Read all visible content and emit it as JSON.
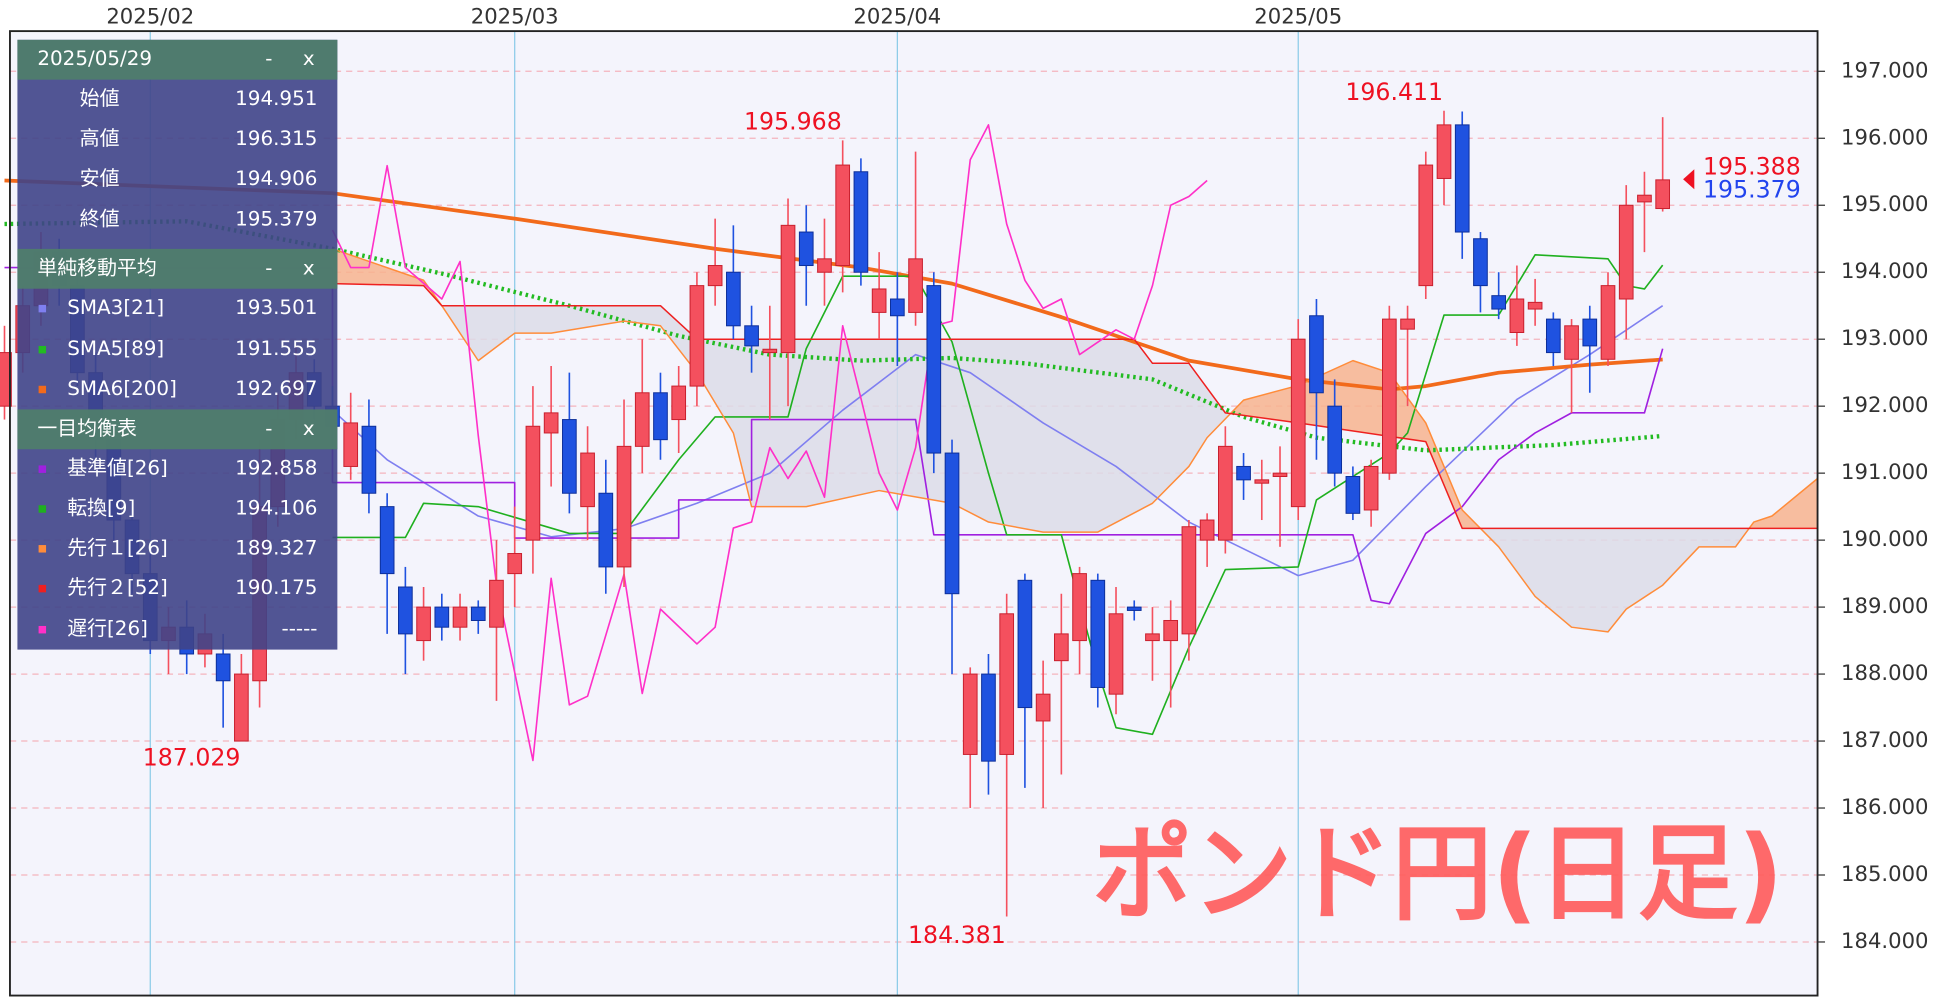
{
  "chart_data": {
    "type": "candlestick",
    "title": "ポンド円(日足)",
    "xlim": [
      0.3,
      99.5
    ],
    "xticks": [
      {
        "value": 8,
        "label": "2025/02"
      },
      {
        "value": 28,
        "label": "2025/03"
      },
      {
        "value": 49,
        "label": "2025/04"
      },
      {
        "value": 71,
        "label": "2025/05"
      }
    ],
    "ylim": [
      183.2,
      197.6
    ],
    "yticks": [
      {
        "value": 184,
        "label": "184.000"
      },
      {
        "value": 185,
        "label": "185.000"
      },
      {
        "value": 186,
        "label": "186.000"
      },
      {
        "value": 187,
        "label": "187.000"
      },
      {
        "value": 188,
        "label": "188.000"
      },
      {
        "value": 189,
        "label": "189.000"
      },
      {
        "value": 190,
        "label": "190.000"
      },
      {
        "value": 191,
        "label": "191.000"
      },
      {
        "value": 192,
        "label": "192.000"
      },
      {
        "value": 193,
        "label": "193.000"
      },
      {
        "value": 194,
        "label": "194.000"
      },
      {
        "value": 195,
        "label": "195.000"
      },
      {
        "value": 196,
        "label": "196.000"
      },
      {
        "value": 197,
        "label": "197.000"
      }
    ],
    "grid": true,
    "candles": {
      "up_color": "#f4505e",
      "down_color": "#1f52e0",
      "open": [
        192.0,
        192.8,
        193.5,
        194.3,
        193.8,
        192.5,
        191.5,
        190.3,
        189.5,
        188.5,
        188.7,
        188.3,
        188.3,
        187.0,
        187.9,
        190.5,
        191.8,
        192.5,
        192.0,
        191.1,
        191.7,
        190.5,
        189.3,
        188.5,
        189.0,
        188.7,
        189.0,
        188.7,
        189.5,
        190.0,
        191.6,
        191.8,
        190.5,
        190.7,
        189.6,
        191.4,
        192.2,
        191.8,
        192.3,
        193.8,
        194.0,
        193.2,
        192.8,
        192.8,
        194.6,
        194.0,
        194.1,
        195.5,
        193.4,
        193.6,
        193.4,
        193.8,
        191.3,
        186.8,
        188.0,
        186.8,
        189.4,
        187.3,
        188.2,
        188.5,
        189.4,
        187.7,
        189.0,
        188.5,
        188.5,
        188.6,
        190.0,
        190.0,
        191.1,
        190.85,
        190.95,
        190.5,
        193.35,
        192.0,
        190.95,
        190.45,
        191.0,
        193.15,
        193.8,
        195.4,
        196.2,
        194.5,
        193.65,
        193.1,
        193.45,
        193.3,
        192.7,
        193.3,
        192.7,
        193.6,
        195.05,
        194.951
      ],
      "high": [
        193.2,
        193.8,
        194.6,
        194.5,
        194.0,
        192.8,
        191.7,
        190.6,
        189.8,
        189.0,
        189.1,
        188.9,
        188.6,
        188.3,
        191.5,
        192.2,
        192.9,
        192.7,
        192.3,
        192.2,
        192.1,
        190.7,
        189.6,
        189.3,
        189.2,
        189.2,
        189.1,
        190.0,
        190.5,
        192.3,
        192.6,
        192.5,
        191.7,
        191.2,
        192.1,
        193.0,
        192.5,
        192.6,
        194.0,
        194.8,
        194.7,
        193.5,
        193.5,
        195.1,
        195.0,
        194.8,
        195.968,
        195.7,
        194.3,
        194.0,
        195.8,
        194.0,
        191.5,
        188.1,
        188.3,
        189.2,
        189.5,
        188.2,
        189.2,
        189.6,
        189.5,
        189.3,
        189.1,
        189.0,
        189.1,
        190.3,
        190.4,
        191.7,
        191.3,
        191.2,
        191.4,
        193.3,
        193.6,
        192.4,
        191.1,
        191.2,
        193.5,
        193.5,
        195.8,
        196.411,
        196.4,
        194.6,
        194.0,
        194.1,
        193.9,
        193.4,
        193.3,
        193.5,
        194.0,
        195.3,
        195.5,
        196.315
      ],
      "low": [
        191.8,
        192.5,
        193.2,
        193.5,
        192.3,
        191.2,
        190.0,
        189.2,
        188.3,
        188.0,
        188.0,
        188.1,
        187.2,
        187.029,
        187.5,
        190.2,
        191.5,
        191.8,
        191.4,
        190.9,
        190.4,
        188.6,
        188.0,
        188.2,
        188.5,
        188.5,
        188.6,
        187.6,
        189.0,
        189.5,
        190.8,
        190.4,
        190.0,
        189.2,
        189.3,
        191.0,
        191.2,
        191.3,
        192.0,
        193.5,
        193.0,
        192.5,
        191.8,
        192.0,
        193.5,
        193.5,
        193.7,
        193.8,
        193.0,
        192.6,
        193.2,
        191.0,
        188.0,
        186.0,
        186.2,
        184.381,
        186.3,
        186.0,
        186.5,
        188.0,
        187.5,
        187.4,
        188.8,
        187.9,
        187.5,
        188.2,
        189.6,
        189.8,
        190.6,
        190.3,
        189.9,
        190.3,
        191.2,
        190.8,
        190.3,
        190.2,
        190.9,
        192.0,
        193.6,
        195.0,
        194.2,
        193.4,
        193.3,
        192.9,
        193.2,
        192.6,
        191.9,
        192.2,
        192.6,
        193.0,
        194.3,
        194.906
      ],
      "close": [
        192.8,
        193.5,
        194.3,
        193.8,
        192.5,
        191.5,
        190.3,
        189.5,
        188.5,
        188.7,
        188.3,
        188.6,
        187.9,
        188.0,
        190.5,
        191.8,
        192.5,
        192.0,
        191.7,
        191.75,
        190.7,
        189.5,
        188.6,
        189.0,
        188.7,
        189.0,
        188.8,
        189.4,
        189.8,
        191.7,
        191.9,
        190.7,
        191.3,
        189.6,
        191.4,
        192.2,
        191.5,
        192.3,
        193.8,
        194.1,
        193.2,
        192.9,
        192.85,
        194.7,
        194.1,
        194.2,
        195.6,
        194.0,
        193.75,
        193.35,
        194.2,
        191.3,
        189.2,
        188.0,
        186.7,
        188.9,
        187.5,
        187.7,
        188.6,
        189.5,
        187.8,
        188.9,
        188.95,
        188.6,
        188.8,
        190.2,
        190.3,
        191.4,
        190.9,
        190.9,
        191.0,
        193.0,
        192.2,
        191.0,
        190.4,
        191.1,
        193.3,
        193.3,
        195.6,
        196.2,
        194.6,
        193.8,
        193.45,
        193.6,
        193.55,
        192.8,
        193.2,
        192.9,
        193.8,
        195.0,
        195.15,
        195.379
      ]
    },
    "cloud_colors": [
      "#f7b38e",
      "#dcdce8"
    ],
    "series": [
      {
        "name": "SMA3[21]",
        "color": "#7f7ff0",
        "width": 1.3,
        "x": [
          18,
          21,
          26,
          30,
          34,
          38,
          42,
          46,
          50,
          53,
          57,
          61,
          65,
          71,
          74,
          78,
          83,
          87,
          91
        ],
        "values": [
          191.94,
          191.2,
          190.36,
          190.05,
          190.17,
          190.55,
          191.0,
          191.94,
          192.77,
          192.5,
          191.75,
          191.1,
          190.27,
          189.47,
          189.7,
          190.8,
          192.1,
          192.77,
          193.501
        ]
      },
      {
        "name": "SMA5[89]",
        "color": "#22bb22",
        "width": 3.5,
        "dash": "2 3",
        "x": [
          0,
          10,
          18,
          24,
          31,
          37,
          42,
          47,
          52,
          56,
          63,
          68,
          72,
          78,
          85,
          91
        ],
        "values": [
          194.72,
          194.76,
          194.35,
          193.98,
          193.5,
          193.05,
          192.77,
          192.68,
          192.72,
          192.64,
          192.4,
          191.84,
          191.53,
          191.34,
          191.42,
          191.555
        ]
      },
      {
        "name": "SMA6[200]",
        "color": "#f26a1b",
        "width": 3,
        "x": [
          0,
          18,
          28,
          39,
          47,
          52,
          58,
          65,
          71,
          76,
          78,
          82,
          87,
          91
        ],
        "values": [
          195.37,
          195.18,
          194.8,
          194.35,
          194.07,
          193.83,
          193.33,
          192.68,
          192.4,
          192.25,
          192.3,
          192.5,
          192.62,
          192.697
        ]
      },
      {
        "name": "基準値[26]",
        "color": "#a020e0",
        "width": 1.3,
        "x": [
          0,
          18,
          18,
          28,
          28,
          37,
          37,
          41,
          41,
          50,
          51,
          71,
          74,
          75,
          76,
          78,
          80,
          82,
          84,
          86,
          90,
          91
        ],
        "values": [
          194.07,
          194.07,
          190.86,
          190.86,
          190.03,
          190.03,
          190.6,
          190.6,
          191.8,
          191.8,
          190.08,
          190.08,
          190.08,
          189.1,
          189.05,
          190.1,
          190.5,
          191.2,
          191.6,
          191.9,
          191.9,
          192.858
        ]
      },
      {
        "name": "転換[9]",
        "color": "#1fb01f",
        "width": 1.3,
        "x": [
          18,
          22,
          23,
          26,
          31,
          34,
          37,
          39,
          43,
          44,
          46,
          50,
          52,
          54,
          55,
          58,
          60,
          61,
          63,
          65,
          67,
          71,
          72,
          76,
          77,
          79,
          82,
          84,
          88,
          89,
          90,
          91
        ],
        "values": [
          190.04,
          190.04,
          190.55,
          190.5,
          190.1,
          190.1,
          191.2,
          191.84,
          191.84,
          192.86,
          193.94,
          193.94,
          192.96,
          191.0,
          190.08,
          190.08,
          188.04,
          187.2,
          187.1,
          188.4,
          189.56,
          189.6,
          190.6,
          191.3,
          191.6,
          193.36,
          193.36,
          194.26,
          194.2,
          193.8,
          193.75,
          194.106
        ]
      },
      {
        "name": "先行１[26]",
        "color": "#ff8c3a",
        "width": 1.2,
        "x": [
          18,
          23,
          24,
          26,
          28,
          30,
          34,
          36,
          38,
          40,
          41,
          44,
          48,
          52,
          54,
          57,
          60,
          63,
          65,
          66,
          68,
          71,
          74,
          76,
          78,
          80,
          82,
          84,
          86,
          88,
          89,
          91,
          93,
          95,
          96,
          97,
          99.5
        ],
        "values": [
          194.35,
          193.88,
          193.5,
          192.68,
          193.09,
          193.09,
          193.27,
          193.2,
          192.5,
          191.6,
          190.5,
          190.5,
          190.74,
          190.55,
          190.27,
          190.12,
          190.12,
          190.55,
          191.1,
          191.53,
          192.09,
          192.31,
          192.68,
          192.5,
          191.75,
          190.45,
          189.9,
          189.16,
          188.7,
          188.63,
          188.97,
          189.327,
          189.9,
          189.9,
          190.27,
          190.36,
          190.92
        ]
      },
      {
        "name": "先行２[52]",
        "color": "#ee2020",
        "width": 1.2,
        "x": [
          18,
          23,
          24,
          36,
          38,
          62,
          63,
          65,
          67,
          71,
          78,
          80,
          91,
          99.5
        ],
        "values": [
          193.83,
          193.8,
          193.5,
          193.5,
          193.0,
          193.0,
          192.64,
          192.64,
          191.9,
          191.75,
          191.47,
          190.175,
          190.175,
          190.175
        ]
      },
      {
        "name": "遅行[26]",
        "color": "#ff30c8",
        "width": 1.3,
        "x": [
          18,
          19,
          20,
          21,
          22,
          24,
          25,
          26,
          27,
          29,
          30,
          31,
          32,
          34,
          35,
          36,
          38,
          39,
          40,
          41,
          42,
          43,
          44,
          45,
          46,
          47,
          48,
          49,
          50,
          51,
          52,
          53,
          54,
          55,
          56,
          57,
          58,
          59,
          61,
          62,
          63,
          64,
          65,
          66
        ],
        "values": [
          194.63,
          194.07,
          194.07,
          195.59,
          194.07,
          193.6,
          194.16,
          191.56,
          189.34,
          186.71,
          189.43,
          187.54,
          187.67,
          189.49,
          187.71,
          188.97,
          188.45,
          188.7,
          190.18,
          190.27,
          191.38,
          190.92,
          191.33,
          190.64,
          193.2,
          192.12,
          191.0,
          190.45,
          191.38,
          193.2,
          193.27,
          195.68,
          196.2,
          194.72,
          193.88,
          193.46,
          193.6,
          192.77,
          193.14,
          193.0,
          193.8,
          195.0,
          195.13,
          195.37
        ]
      }
    ],
    "price_marks": [
      {
        "value": 195.388,
        "color": "#ee1122"
      },
      {
        "value": 195.379,
        "color": "#2244ee"
      }
    ]
  },
  "info_panel": {
    "date": "2025/05/29",
    "ohlc_labels": [
      "始値",
      "高値",
      "安値",
      "終値"
    ],
    "sections": [
      "単純移動平均",
      "一目均衡表"
    ],
    "buttons": [
      "-",
      "x"
    ],
    "lagging_value": "-----"
  }
}
